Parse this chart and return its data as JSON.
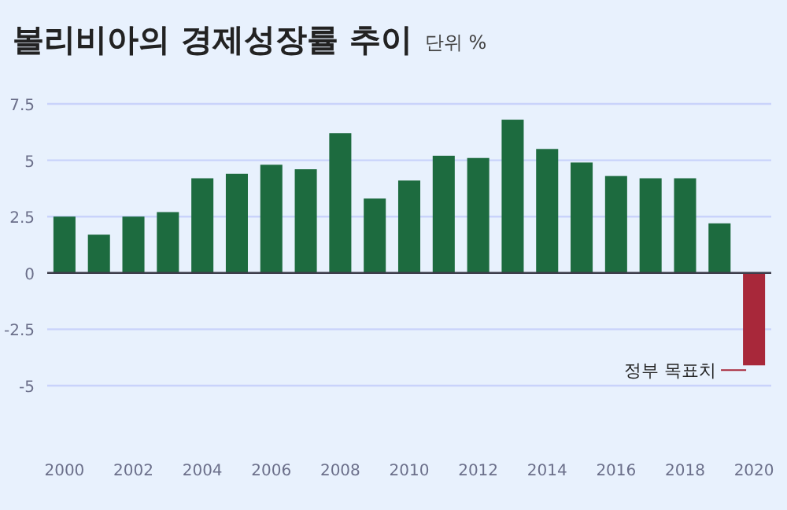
{
  "chart_data": {
    "type": "bar",
    "title": "볼리비아의 경제성장률 추이",
    "subtitle": "단위 %",
    "categories": [
      "2000",
      null,
      "2002",
      null,
      "2004",
      null,
      "2006",
      null,
      "2008",
      null,
      "2010",
      null,
      "2012",
      null,
      "2014",
      null,
      "2016",
      null,
      "2018",
      null,
      "2020"
    ],
    "values": [
      2.5,
      1.7,
      2.5,
      2.7,
      4.2,
      4.4,
      4.8,
      4.6,
      6.2,
      3.3,
      4.1,
      5.2,
      5.1,
      6.8,
      5.5,
      4.9,
      4.3,
      4.2,
      4.2,
      2.2,
      -4.1
    ],
    "colors": [
      "#1d6b3f",
      "#1d6b3f",
      "#1d6b3f",
      "#1d6b3f",
      "#1d6b3f",
      "#1d6b3f",
      "#1d6b3f",
      "#1d6b3f",
      "#1d6b3f",
      "#1d6b3f",
      "#1d6b3f",
      "#1d6b3f",
      "#1d6b3f",
      "#1d6b3f",
      "#1d6b3f",
      "#1d6b3f",
      "#1d6b3f",
      "#1d6b3f",
      "#1d6b3f",
      "#1d6b3f",
      "#a8283a"
    ],
    "ylim": [
      -5,
      7.5
    ],
    "yticks": [
      {
        "value": -5,
        "label": "-5"
      },
      {
        "value": -2.5,
        "label": "-2.5"
      },
      0,
      2.5,
      5,
      7.5
    ],
    "grid": "y",
    "annotations": [
      {
        "text": "정부 목표치",
        "x": "2020",
        "y": -4.1
      }
    ]
  }
}
